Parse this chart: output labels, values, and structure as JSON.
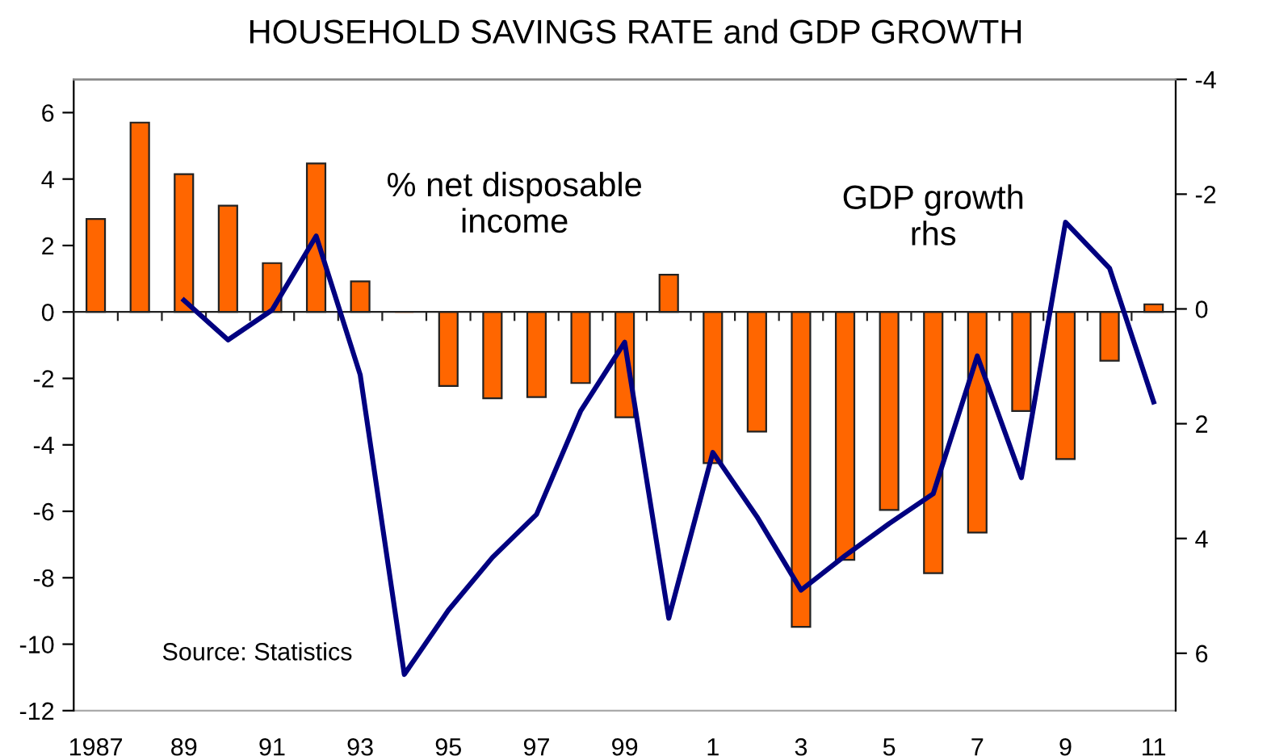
{
  "chart_data": {
    "type": "bar",
    "title": "HOUSEHOLD SAVINGS RATE and GDP GROWTH",
    "categories": [
      "1987",
      null,
      "89",
      null,
      "91",
      null,
      "93",
      null,
      "95",
      null,
      "97",
      null,
      "99",
      null,
      "1",
      null,
      "3",
      null,
      "5",
      null,
      "7",
      null,
      "9",
      null,
      "11"
    ],
    "series": [
      {
        "color": "#ff6600",
        "values": [
          2.8,
          5.7,
          4.15,
          3.2,
          1.47,
          4.47,
          0.92,
          0.0,
          -2.23,
          -2.6,
          -2.56,
          -2.14,
          -3.17,
          1.12,
          -4.55,
          -3.6,
          -9.48,
          -7.46,
          -5.96,
          -7.86,
          -6.64,
          -2.98,
          -4.43,
          -1.47,
          0.23
        ]
      },
      {
        "type": "line",
        "axis": "y2",
        "color": "#000080",
        "values": [
          null,
          null,
          -0.15,
          0.54,
          0.02,
          -1.27,
          1.15,
          6.37,
          5.25,
          4.33,
          3.58,
          1.78,
          0.58,
          5.39,
          2.5,
          3.62,
          4.9,
          4.3,
          3.74,
          3.22,
          0.82,
          2.94,
          -1.51,
          -0.71,
          1.62
        ]
      }
    ],
    "ylim": [
      -12,
      7
    ],
    "yticks": [
      -12,
      -10,
      -8,
      -6,
      -4,
      -2,
      0,
      2,
      4,
      6
    ],
    "y2lim": [
      7,
      -4
    ],
    "y2ticks": [
      -4,
      -2,
      0,
      2,
      4,
      6
    ],
    "annotations": [
      "% net disposable\nincome",
      "GDP growth\nrhs",
      "Source: Statistics"
    ],
    "legend": false,
    "marker": "none",
    "line_style": "solid"
  }
}
